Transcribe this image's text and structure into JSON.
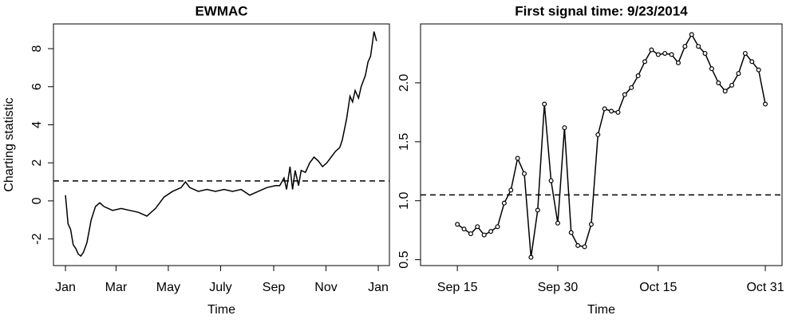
{
  "chart_data": [
    {
      "type": "line",
      "title": "EWMAC",
      "xlabel": "Time",
      "ylabel": "Charting statistic",
      "x": [
        0,
        3,
        6,
        9,
        12,
        15,
        18,
        21,
        25,
        30,
        35,
        40,
        45,
        55,
        65,
        75,
        85,
        95,
        105,
        115,
        125,
        135,
        140,
        145,
        155,
        165,
        175,
        185,
        195,
        205,
        215,
        225,
        235,
        245,
        250,
        255,
        258,
        262,
        265,
        268,
        272,
        275,
        280,
        285,
        290,
        295,
        300,
        305,
        310,
        315,
        320,
        323,
        328,
        332,
        335,
        338,
        342,
        345,
        350,
        353,
        356,
        360,
        363
      ],
      "values": [
        0.3,
        -1.2,
        -1.5,
        -2.3,
        -2.5,
        -2.8,
        -2.9,
        -2.7,
        -2.2,
        -1.0,
        -0.3,
        -0.1,
        -0.3,
        -0.5,
        -0.4,
        -0.5,
        -0.6,
        -0.8,
        -0.4,
        0.2,
        0.5,
        0.7,
        1.0,
        0.7,
        0.5,
        0.6,
        0.5,
        0.6,
        0.5,
        0.6,
        0.3,
        0.5,
        0.7,
        0.8,
        0.8,
        1.2,
        0.6,
        1.8,
        0.6,
        1.6,
        0.8,
        1.6,
        1.5,
        2.0,
        2.3,
        2.1,
        1.8,
        2.0,
        2.3,
        2.6,
        2.8,
        3.2,
        4.3,
        5.5,
        5.2,
        5.8,
        5.4,
        6.0,
        6.6,
        7.3,
        7.6,
        8.9,
        8.4
      ],
      "color": "#000000",
      "markers": false,
      "hline": 1.05,
      "xlim": [
        -14,
        378
      ],
      "xticks": [
        {
          "value": 0,
          "label": "Jan"
        },
        {
          "value": 59,
          "label": "Mar"
        },
        {
          "value": 120,
          "label": "May"
        },
        {
          "value": 181,
          "label": "July"
        },
        {
          "value": 243,
          "label": "Sep"
        },
        {
          "value": 304,
          "label": "Nov"
        },
        {
          "value": 365,
          "label": "Jan"
        }
      ],
      "ylim": [
        -3.4,
        9.3
      ],
      "yticks": [
        -2,
        0,
        2,
        4,
        6,
        8
      ]
    },
    {
      "type": "line",
      "title": "First signal time: 9/23/2014",
      "xlabel": "Time",
      "x": [
        0,
        1,
        2,
        3,
        4,
        5,
        6,
        7,
        8,
        9,
        10,
        11,
        12,
        13,
        14,
        15,
        16,
        17,
        18,
        19,
        20,
        21,
        22,
        23,
        24,
        25,
        26,
        27,
        28,
        29,
        30,
        31,
        32,
        33,
        34,
        35,
        36,
        37,
        38,
        39,
        40,
        41,
        42,
        43,
        44,
        45,
        46
      ],
      "values": [
        0.8,
        0.76,
        0.72,
        0.78,
        0.71,
        0.74,
        0.78,
        0.98,
        1.09,
        1.36,
        1.23,
        0.52,
        0.92,
        1.82,
        1.17,
        0.81,
        1.62,
        0.73,
        0.62,
        0.61,
        0.8,
        1.56,
        1.78,
        1.76,
        1.75,
        1.9,
        1.96,
        2.06,
        2.18,
        2.28,
        2.24,
        2.25,
        2.24,
        2.17,
        2.31,
        2.41,
        2.31,
        2.25,
        2.12,
        2.0,
        1.93,
        1.98,
        2.08,
        2.25,
        2.18,
        2.11,
        1.82
      ],
      "color": "#000000",
      "markers": true,
      "hline": 1.05,
      "xlim": [
        -5.5,
        48.5
      ],
      "xticks": [
        {
          "value": 0,
          "label": "Sep 15"
        },
        {
          "value": 15,
          "label": "Sep 30"
        },
        {
          "value": 30,
          "label": "Oct 15"
        },
        {
          "value": 46,
          "label": "Oct 31"
        }
      ],
      "ylim": [
        0.45,
        2.5
      ],
      "yticks": [
        0.5,
        {
          "value": 1.0,
          "label": "1.0"
        },
        1.5,
        {
          "value": 2.0,
          "label": "2.0"
        }
      ]
    }
  ]
}
